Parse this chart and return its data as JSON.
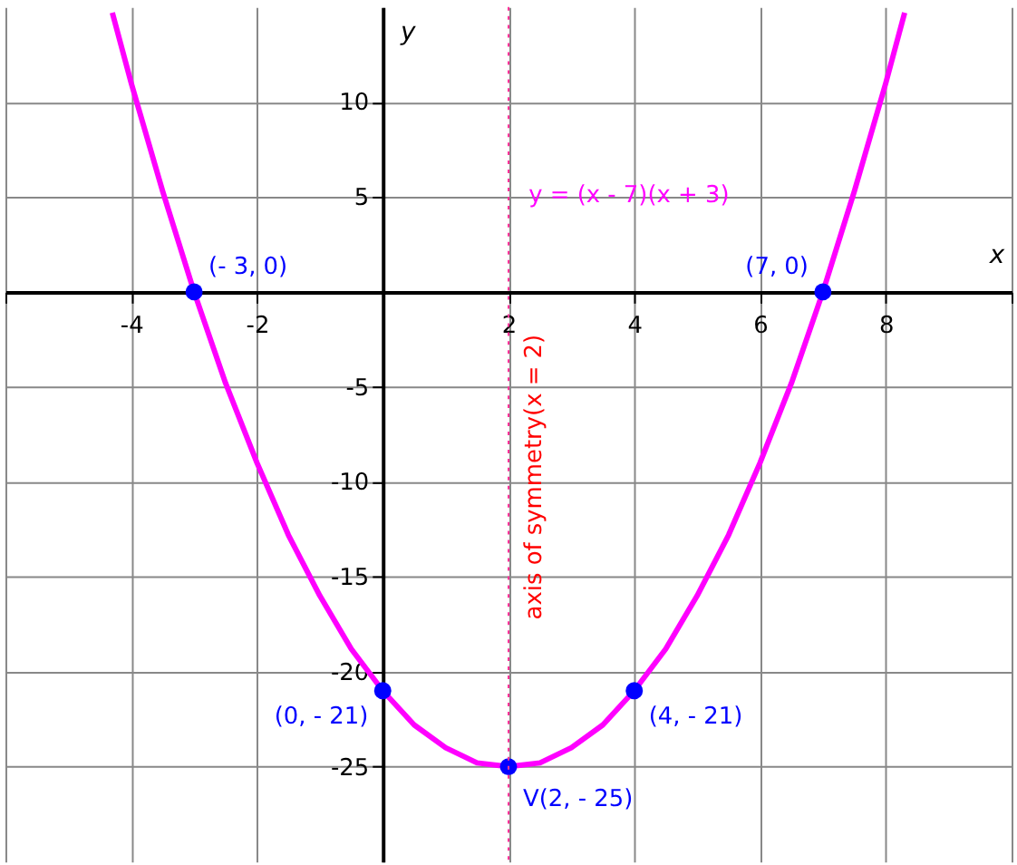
{
  "chart_data": {
    "type": "line",
    "xlabel": "x",
    "ylabel": "y",
    "xlim": [
      -6,
      10
    ],
    "ylim": [
      -30,
      15
    ],
    "xticks": [
      {
        "value": -6,
        "label": null
      },
      -4,
      -2,
      {
        "value": 0,
        "label": null
      },
      2,
      4,
      6,
      8,
      {
        "value": 10,
        "label": null
      }
    ],
    "yticks": [
      -25,
      -20,
      -15,
      -10,
      -5,
      {
        "value": 0,
        "label": null
      },
      5,
      10
    ],
    "grid": true,
    "series": [
      {
        "name": "y = (x - 7)(x + 3)",
        "color": "#ff00ff",
        "x": [
          -4.3,
          -4,
          -3.5,
          -3,
          -2.5,
          -2,
          -1.5,
          -1,
          -0.5,
          0,
          0.5,
          1,
          1.5,
          2,
          2.5,
          3,
          3.5,
          4,
          4.5,
          5,
          5.5,
          6,
          6.5,
          7,
          7.5,
          8,
          8.3
        ],
        "values": [
          14.7,
          11,
          5.3,
          0,
          -4.8,
          -9,
          -12.8,
          -16,
          -18.8,
          -21,
          -22.8,
          -24,
          -24.8,
          -25,
          -24.8,
          -24,
          -22.8,
          -21,
          -18.8,
          -16,
          -12.8,
          -9,
          -4.8,
          0,
          5.3,
          11,
          14.7
        ]
      },
      {
        "type": "scatter",
        "color": "#0000ff",
        "marker": "circle",
        "x": [
          -3,
          7,
          0,
          4,
          2
        ],
        "values": [
          0,
          0,
          -21,
          -21,
          -25
        ]
      }
    ],
    "ref_lines": [
      {
        "axis": "x",
        "value": 2,
        "label": "axis of symmetry(x = 2)",
        "color": "#ff3399",
        "line_style": "dotted"
      }
    ],
    "annotations": [
      {
        "text": "(- 3, 0)",
        "x": -3,
        "y": 0
      },
      {
        "text": "(7, 0)",
        "x": 7,
        "y": 0
      },
      {
        "text": "(0, - 21)",
        "x": 0,
        "y": -21
      },
      {
        "text": "(4, - 21)",
        "x": 4,
        "y": -21
      },
      {
        "text": "V(2, - 25)",
        "x": 2,
        "y": -25
      }
    ]
  }
}
